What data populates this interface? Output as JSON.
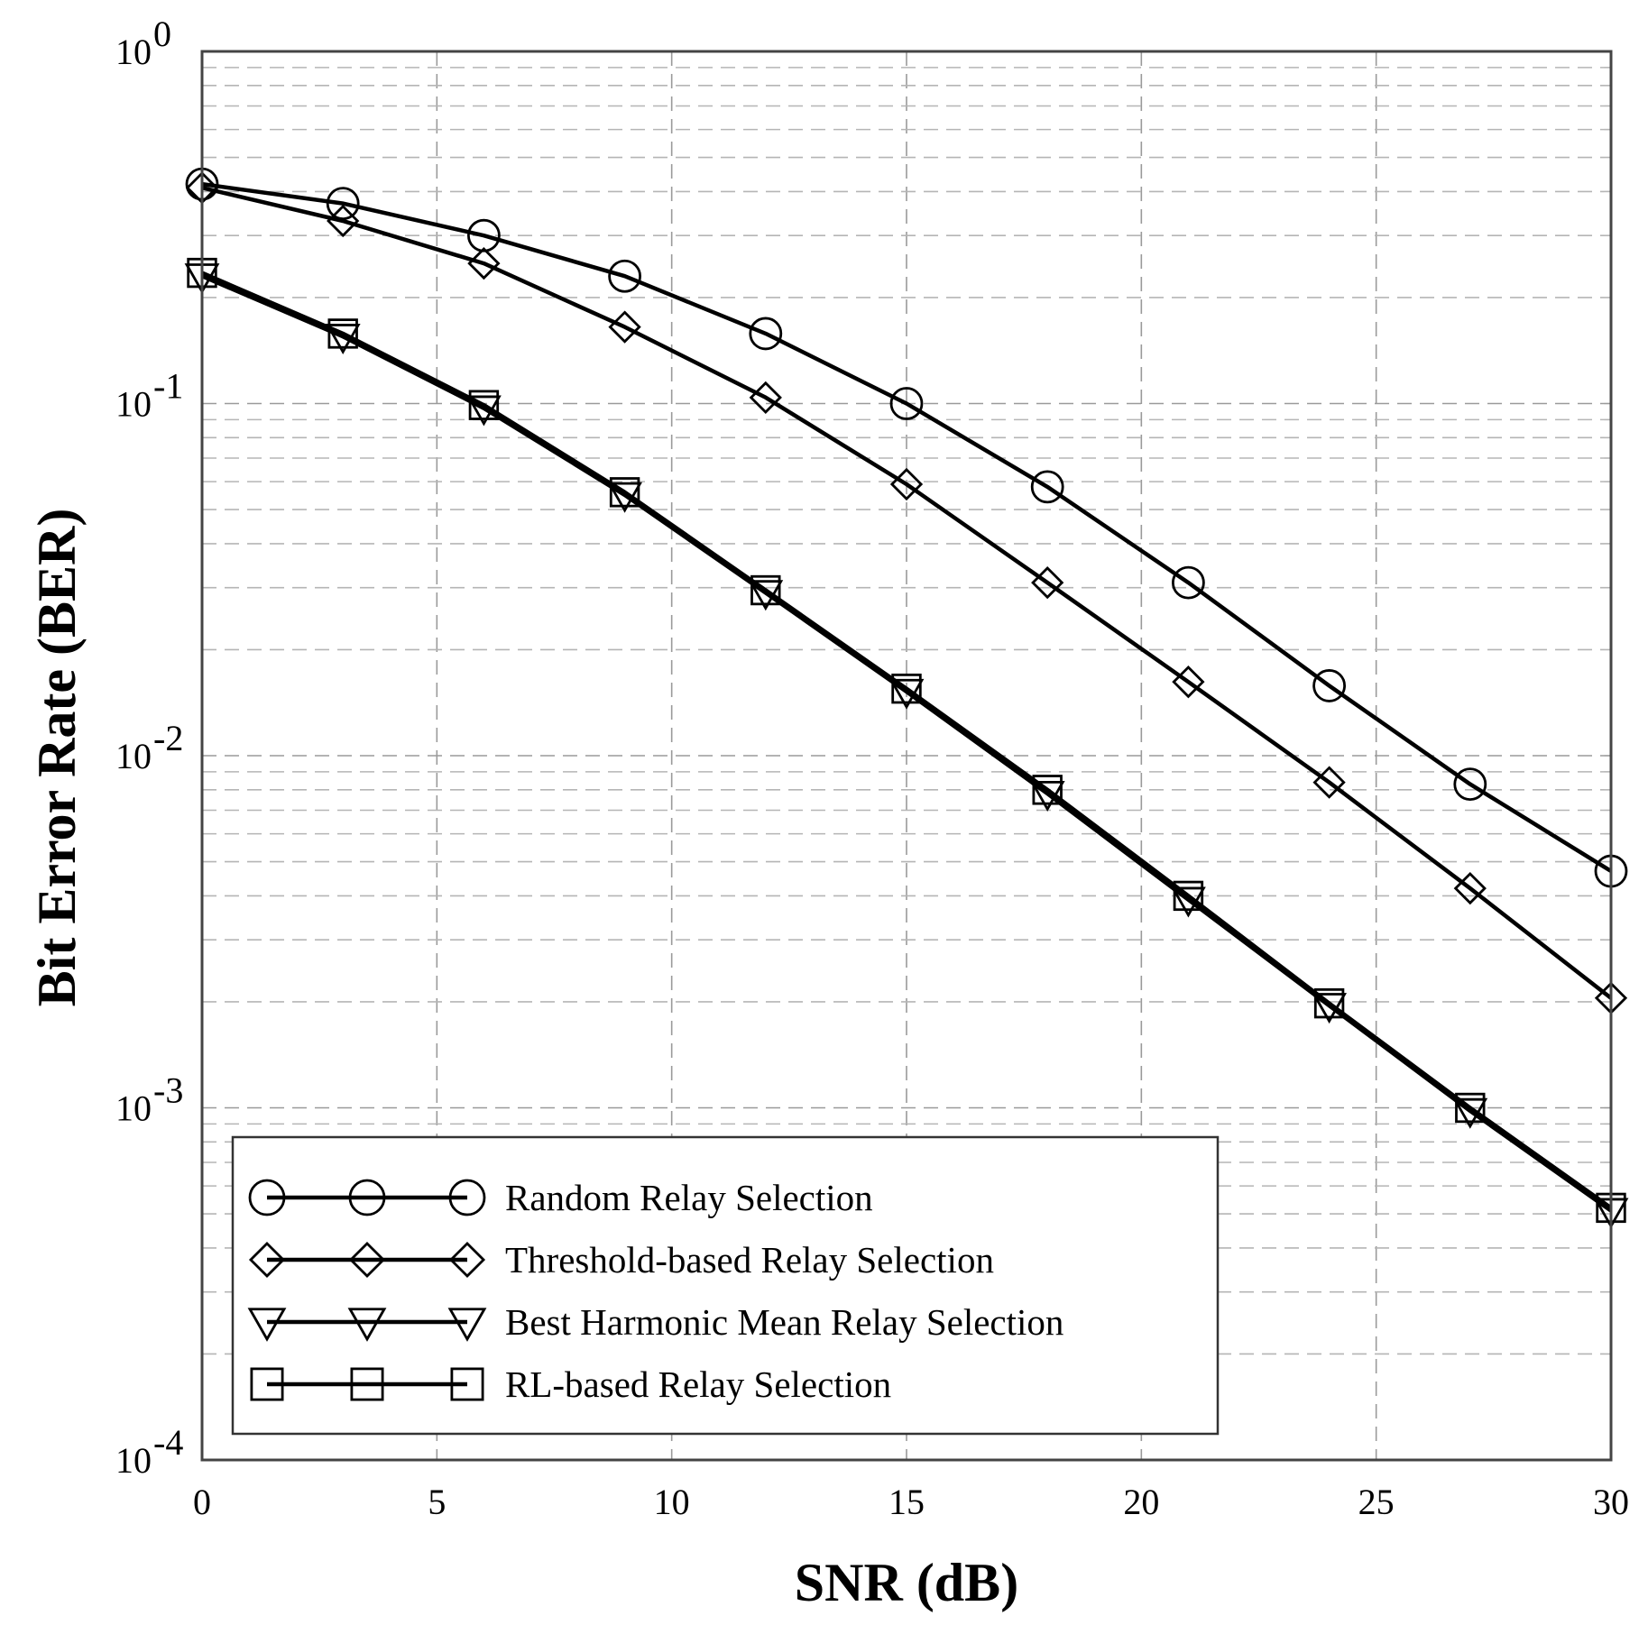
{
  "chart_data": {
    "type": "line",
    "title": "",
    "xlabel": "SNR (dB)",
    "ylabel": "Bit Error Rate (BER)",
    "yscale": "log",
    "xlim": [
      0,
      30
    ],
    "ylim": [
      0.0001,
      1
    ],
    "grid": true,
    "x_ticks": [
      0,
      5,
      10,
      15,
      20,
      25,
      30
    ],
    "x_tick_labels": [
      "0",
      "5",
      "10",
      "15",
      "20",
      "25",
      "30"
    ],
    "y_ticks": [
      {
        "value": 1,
        "base": "10",
        "exp": "0"
      },
      {
        "value": 0.1,
        "base": "10",
        "exp": "-1"
      },
      {
        "value": 0.01,
        "base": "10",
        "exp": "-2"
      },
      {
        "value": 0.001,
        "base": "10",
        "exp": "-3"
      },
      {
        "value": 0.0001,
        "base": "10",
        "exp": "-4"
      }
    ],
    "x": [
      0,
      3,
      6,
      9,
      12,
      15,
      18,
      21,
      24,
      27,
      30
    ],
    "series": [
      {
        "name": "Random Relay Selection",
        "marker": "circle",
        "values": [
          0.42,
          0.37,
          0.3,
          0.23,
          0.158,
          0.1,
          0.058,
          0.031,
          0.0158,
          0.0083,
          0.0047
        ]
      },
      {
        "name": "Threshold-based Relay Selection",
        "marker": "diamond",
        "values": [
          0.41,
          0.33,
          0.25,
          0.165,
          0.104,
          0.059,
          0.031,
          0.0162,
          0.0084,
          0.0042,
          0.00205
        ]
      },
      {
        "name": "Best Harmonic Mean Relay Selection",
        "marker": "triangle-down",
        "values": [
          0.23,
          0.155,
          0.097,
          0.055,
          0.029,
          0.0152,
          0.0078,
          0.0039,
          0.00195,
          0.00098,
          0.00051
        ]
      },
      {
        "name": "RL-based Relay Selection",
        "marker": "square",
        "values": [
          0.235,
          0.158,
          0.099,
          0.056,
          0.0295,
          0.0155,
          0.008,
          0.004,
          0.00198,
          0.001,
          0.00052
        ]
      }
    ],
    "legend_position": "bottom-left"
  }
}
